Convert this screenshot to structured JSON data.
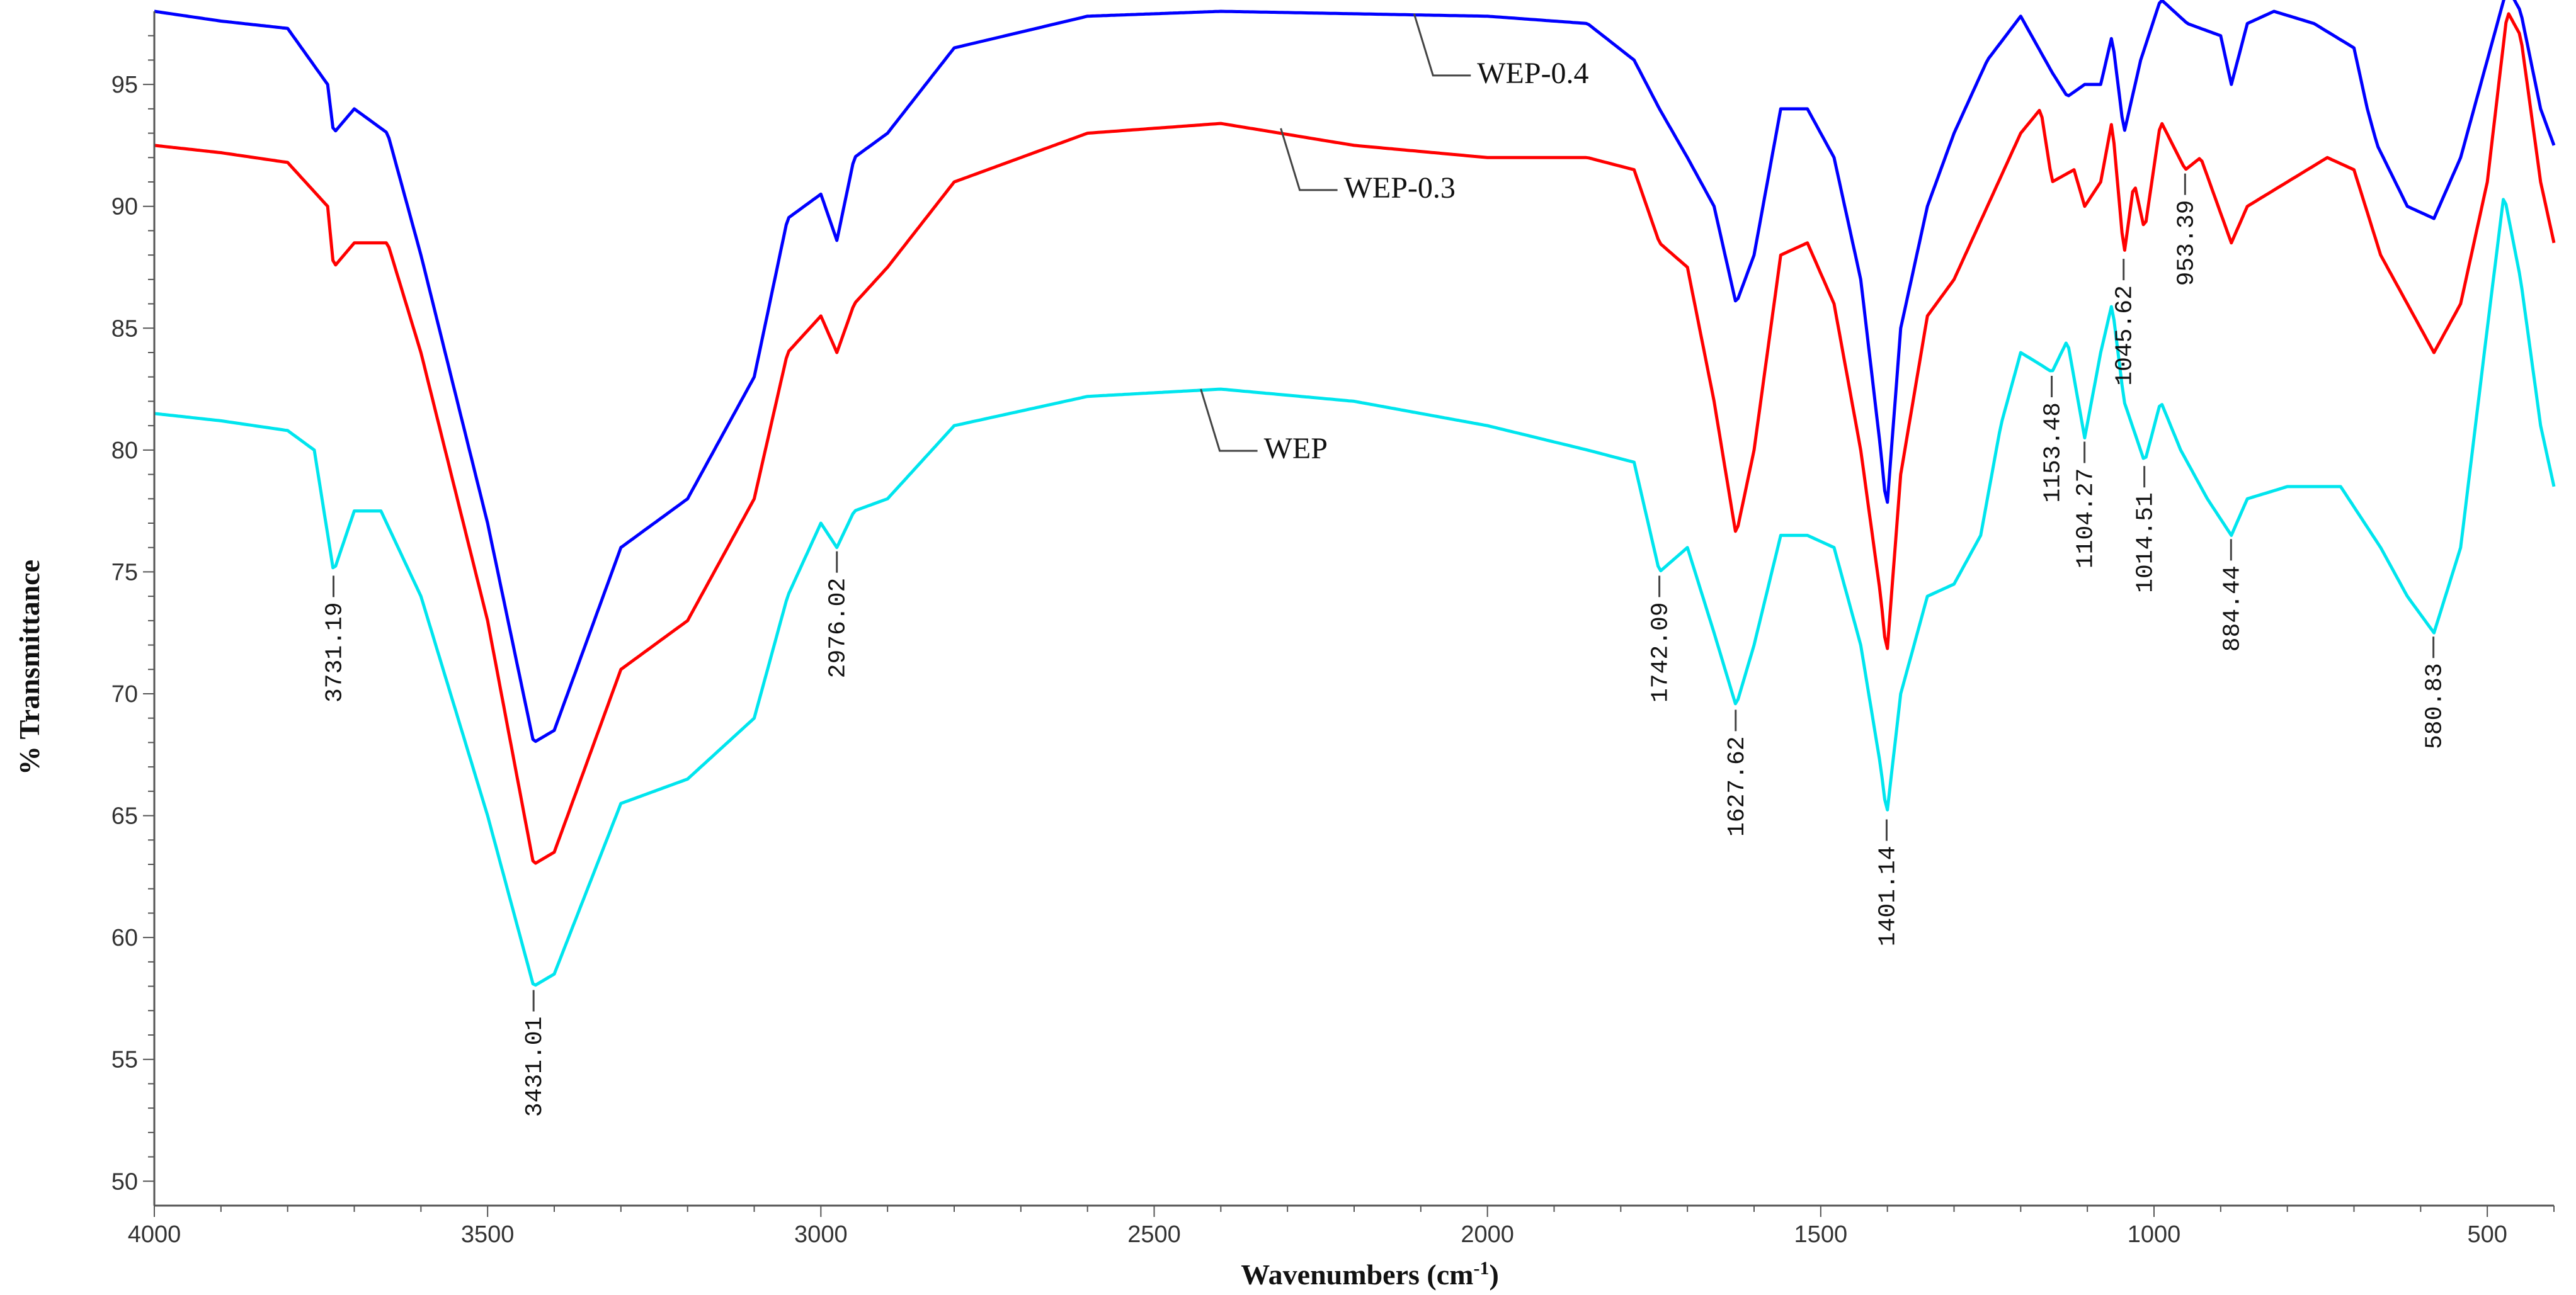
{
  "chart_data": {
    "type": "line",
    "title": "",
    "xlabel": "Wavenumbers (cm-1)",
    "xlabel_main": "Wavenumbers (cm",
    "xlabel_sup": "-1",
    "xlabel_close": ")",
    "ylabel": "% Transmittance",
    "xlim": [
      4000,
      400
    ],
    "ylim": [
      49,
      98
    ],
    "x_ticks": [
      4000,
      3500,
      3000,
      2500,
      2000,
      1500,
      1000,
      500
    ],
    "y_ticks": [
      50,
      55,
      60,
      65,
      70,
      75,
      80,
      85,
      90,
      95
    ],
    "grid": false,
    "legend": "inline labels",
    "series": [
      {
        "name": "WEP-0.4",
        "color": "#0000ff",
        "points": [
          [
            4000,
            98
          ],
          [
            3900,
            97.6
          ],
          [
            3800,
            97.3
          ],
          [
            3740,
            95
          ],
          [
            3731,
            93
          ],
          [
            3700,
            94
          ],
          [
            3650,
            93
          ],
          [
            3600,
            88
          ],
          [
            3500,
            77
          ],
          [
            3431,
            68
          ],
          [
            3400,
            68.5
          ],
          [
            3300,
            76
          ],
          [
            3200,
            78
          ],
          [
            3100,
            83
          ],
          [
            3050,
            89.5
          ],
          [
            3000,
            90.5
          ],
          [
            2976,
            88.6
          ],
          [
            2950,
            92
          ],
          [
            2900,
            93
          ],
          [
            2800,
            96.5
          ],
          [
            2600,
            97.8
          ],
          [
            2400,
            98
          ],
          [
            2200,
            97.9
          ],
          [
            2000,
            97.8
          ],
          [
            1850,
            97.5
          ],
          [
            1780,
            96
          ],
          [
            1742,
            94
          ],
          [
            1700,
            92
          ],
          [
            1660,
            90
          ],
          [
            1627,
            86
          ],
          [
            1600,
            88
          ],
          [
            1560,
            94
          ],
          [
            1520,
            94
          ],
          [
            1480,
            92
          ],
          [
            1440,
            87
          ],
          [
            1410,
            80
          ],
          [
            1401,
            77.5
          ],
          [
            1380,
            85
          ],
          [
            1340,
            90
          ],
          [
            1300,
            93
          ],
          [
            1250,
            96
          ],
          [
            1200,
            97.8
          ],
          [
            1153,
            95.5
          ],
          [
            1130,
            94.5
          ],
          [
            1104,
            95
          ],
          [
            1080,
            95
          ],
          [
            1063,
            97
          ],
          [
            1045,
            93
          ],
          [
            1020,
            96
          ],
          [
            990,
            98.5
          ],
          [
            950,
            97.5
          ],
          [
            900,
            97
          ],
          [
            884,
            95
          ],
          [
            860,
            97.5
          ],
          [
            820,
            98
          ],
          [
            760,
            97.5
          ],
          [
            700,
            96.5
          ],
          [
            680,
            94
          ],
          [
            665,
            92.5
          ],
          [
            620,
            90
          ],
          [
            580,
            89.5
          ],
          [
            540,
            92
          ],
          [
            500,
            96
          ],
          [
            470,
            99
          ],
          [
            450,
            98
          ],
          [
            420,
            94
          ],
          [
            400,
            92.5
          ]
        ]
      },
      {
        "name": "WEP-0.3",
        "color": "#ff0000",
        "points": [
          [
            4000,
            92.5
          ],
          [
            3900,
            92.2
          ],
          [
            3800,
            91.8
          ],
          [
            3740,
            90
          ],
          [
            3731,
            87.5
          ],
          [
            3700,
            88.5
          ],
          [
            3650,
            88.5
          ],
          [
            3600,
            84
          ],
          [
            3500,
            73
          ],
          [
            3431,
            63
          ],
          [
            3400,
            63.5
          ],
          [
            3300,
            71
          ],
          [
            3200,
            73
          ],
          [
            3100,
            78
          ],
          [
            3050,
            84
          ],
          [
            3000,
            85.5
          ],
          [
            2976,
            84
          ],
          [
            2950,
            86
          ],
          [
            2900,
            87.5
          ],
          [
            2800,
            91
          ],
          [
            2600,
            93
          ],
          [
            2400,
            93.4
          ],
          [
            2200,
            92.5
          ],
          [
            2000,
            92
          ],
          [
            1850,
            92
          ],
          [
            1780,
            91.5
          ],
          [
            1742,
            88.5
          ],
          [
            1700,
            87.5
          ],
          [
            1660,
            82
          ],
          [
            1627,
            76.5
          ],
          [
            1600,
            80
          ],
          [
            1560,
            88
          ],
          [
            1520,
            88.5
          ],
          [
            1480,
            86
          ],
          [
            1440,
            80
          ],
          [
            1410,
            74
          ],
          [
            1401,
            71.5
          ],
          [
            1380,
            79
          ],
          [
            1340,
            85.5
          ],
          [
            1300,
            87
          ],
          [
            1250,
            90
          ],
          [
            1200,
            93
          ],
          [
            1170,
            94
          ],
          [
            1153,
            91
          ],
          [
            1120,
            91.5
          ],
          [
            1104,
            90
          ],
          [
            1080,
            91
          ],
          [
            1063,
            93.5
          ],
          [
            1045,
            88
          ],
          [
            1030,
            91
          ],
          [
            1014,
            89
          ],
          [
            990,
            93.5
          ],
          [
            953,
            91.5
          ],
          [
            930,
            92
          ],
          [
            884,
            88.5
          ],
          [
            860,
            90
          ],
          [
            800,
            91
          ],
          [
            740,
            92
          ],
          [
            700,
            91.5
          ],
          [
            660,
            88
          ],
          [
            620,
            86
          ],
          [
            580,
            84
          ],
          [
            540,
            86
          ],
          [
            500,
            91
          ],
          [
            470,
            98
          ],
          [
            450,
            97
          ],
          [
            420,
            91
          ],
          [
            400,
            88.5
          ]
        ]
      },
      {
        "name": "WEP",
        "color": "#00e5ee",
        "points": [
          [
            4000,
            81.5
          ],
          [
            3900,
            81.2
          ],
          [
            3800,
            80.8
          ],
          [
            3760,
            80
          ],
          [
            3731,
            75
          ],
          [
            3700,
            77.5
          ],
          [
            3660,
            77.5
          ],
          [
            3600,
            74
          ],
          [
            3500,
            65
          ],
          [
            3431,
            58
          ],
          [
            3400,
            58.5
          ],
          [
            3300,
            65.5
          ],
          [
            3200,
            66.5
          ],
          [
            3100,
            69
          ],
          [
            3050,
            74
          ],
          [
            3000,
            77
          ],
          [
            2976,
            76
          ],
          [
            2950,
            77.5
          ],
          [
            2900,
            78
          ],
          [
            2800,
            81
          ],
          [
            2600,
            82.2
          ],
          [
            2400,
            82.5
          ],
          [
            2200,
            82
          ],
          [
            2000,
            81
          ],
          [
            1850,
            80
          ],
          [
            1780,
            79.5
          ],
          [
            1742,
            75
          ],
          [
            1700,
            76
          ],
          [
            1660,
            72.5
          ],
          [
            1627,
            69.5
          ],
          [
            1600,
            72
          ],
          [
            1560,
            76.5
          ],
          [
            1520,
            76.5
          ],
          [
            1480,
            76
          ],
          [
            1440,
            72
          ],
          [
            1410,
            67
          ],
          [
            1401,
            65
          ],
          [
            1380,
            70
          ],
          [
            1340,
            74
          ],
          [
            1300,
            74.5
          ],
          [
            1260,
            76.5
          ],
          [
            1230,
            81
          ],
          [
            1200,
            84
          ],
          [
            1170,
            83.5
          ],
          [
            1153,
            83.2
          ],
          [
            1130,
            84.5
          ],
          [
            1104,
            80.5
          ],
          [
            1080,
            84
          ],
          [
            1063,
            86
          ],
          [
            1045,
            82
          ],
          [
            1014,
            79.5
          ],
          [
            990,
            82
          ],
          [
            960,
            80
          ],
          [
            920,
            78
          ],
          [
            884,
            76.5
          ],
          [
            860,
            78
          ],
          [
            800,
            78.5
          ],
          [
            720,
            78.5
          ],
          [
            660,
            76
          ],
          [
            620,
            74
          ],
          [
            580,
            72.5
          ],
          [
            540,
            76
          ],
          [
            500,
            85
          ],
          [
            475,
            90.5
          ],
          [
            450,
            87
          ],
          [
            420,
            81
          ],
          [
            400,
            78.5
          ]
        ]
      }
    ],
    "series_labels": [
      {
        "text": "WEP-0.4",
        "x": 2110,
        "y": 97.9
      },
      {
        "text": "WEP-0.3",
        "x": 2310,
        "y": 93.2
      },
      {
        "text": "WEP",
        "x": 2430,
        "y": 82.5
      }
    ],
    "peak_annotations": [
      {
        "text": "3731.19",
        "x": 3731.19,
        "y": 75
      },
      {
        "text": "3431.01",
        "x": 3431.01,
        "y": 58
      },
      {
        "text": "2976.02",
        "x": 2976.02,
        "y": 76
      },
      {
        "text": "1742.09",
        "x": 1742.09,
        "y": 75
      },
      {
        "text": "1627.62",
        "x": 1627.62,
        "y": 69.5
      },
      {
        "text": "1401.14",
        "x": 1401.14,
        "y": 65
      },
      {
        "text": "1153.48",
        "x": 1153.48,
        "y": 83.2
      },
      {
        "text": "1104.27",
        "x": 1104.27,
        "y": 80.5
      },
      {
        "text": "1045.62",
        "x": 1045.62,
        "y": 88
      },
      {
        "text": "1014.51",
        "x": 1014.51,
        "y": 79.5
      },
      {
        "text": "953.39",
        "x": 953.39,
        "y": 91.5
      },
      {
        "text": "884.44",
        "x": 884.44,
        "y": 76.5
      },
      {
        "text": "580.83",
        "x": 580.83,
        "y": 72.5
      }
    ]
  }
}
